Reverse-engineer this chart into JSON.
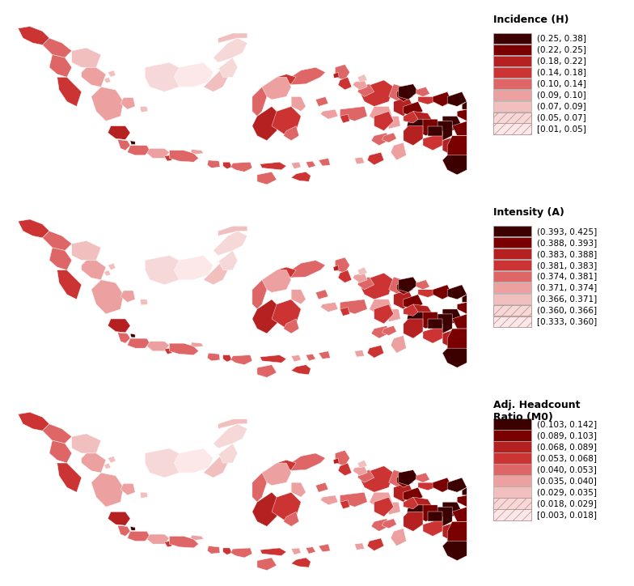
{
  "background_color": "#ffffff",
  "panel1": {
    "title": "Incidence (H)",
    "legend_labels": [
      "(0.25, 0.38]",
      "(0.22, 0.25]",
      "(0.18, 0.22]",
      "(0.14, 0.18]",
      "(0.10, 0.14]",
      "(0.09, 0.10]",
      "(0.07, 0.09]",
      "(0.05, 0.07]",
      "[0.01, 0.05]"
    ],
    "legend_colors": [
      "#3d0000",
      "#7a0000",
      "#b52020",
      "#cc3333",
      "#de6666",
      "#eca0a0",
      "#f2bfbf",
      "#f7d8d8",
      "#fce8e8"
    ]
  },
  "panel2": {
    "title": "Intensity (A)",
    "legend_labels": [
      "(0.393, 0.425]",
      "(0.388, 0.393]",
      "(0.383, 0.388]",
      "(0.381, 0.383]",
      "(0.374, 0.381]",
      "(0.371, 0.374]",
      "(0.366, 0.371]",
      "(0.360, 0.366]",
      "[0.333, 0.360]"
    ],
    "legend_colors": [
      "#3d0000",
      "#7a0000",
      "#b52020",
      "#cc3333",
      "#de6666",
      "#eca0a0",
      "#f2bfbf",
      "#f7d8d8",
      "#fce8e8"
    ]
  },
  "panel3": {
    "title": "Adj. Headcount\nRatio (M0)",
    "legend_labels": [
      "(0.103, 0.142]",
      "(0.089, 0.103]",
      "(0.068, 0.089]",
      "(0.053, 0.068]",
      "(0.040, 0.053]",
      "(0.035, 0.040]",
      "(0.029, 0.035]",
      "(0.018, 0.029]",
      "[0.003, 0.018]"
    ],
    "legend_colors": [
      "#3d0000",
      "#7a0000",
      "#b52020",
      "#cc3333",
      "#de6666",
      "#eca0a0",
      "#f2bfbf",
      "#f7d8d8",
      "#fce8e8"
    ]
  },
  "figsize": [
    7.84,
    7.24
  ],
  "dpi": 100,
  "legend_title_fontsize": 9,
  "legend_label_fontsize": 7.5,
  "legend_title_fontweight": "bold"
}
